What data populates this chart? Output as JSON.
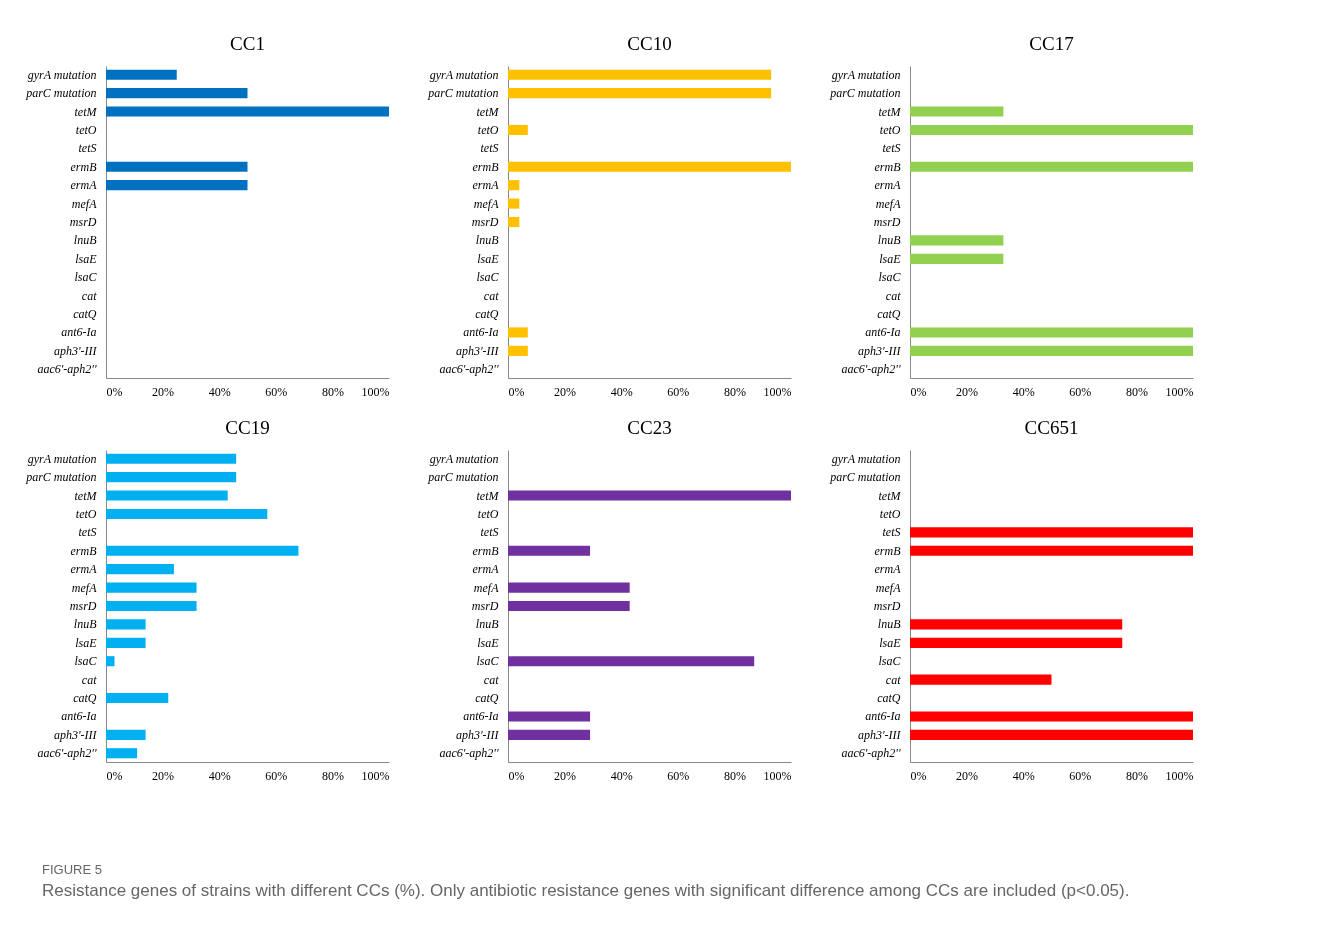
{
  "chart_data": [
    {
      "type": "bar",
      "orientation": "horizontal",
      "title": "CC1",
      "categories": [
        "gyrA mutation",
        "parC mutation",
        "tetM",
        "tetO",
        "tetS",
        "ermB",
        "ermA",
        "mefA",
        "msrD",
        "lnuB",
        "lsaE",
        "lsaC",
        "cat",
        "catQ",
        "ant6-Ia",
        "aph3'-III",
        "aac6'-aph2''"
      ],
      "values": [
        25,
        50,
        100,
        0,
        0,
        50,
        50,
        0,
        0,
        0,
        0,
        0,
        0,
        0,
        0,
        0,
        0
      ],
      "color": "#0070c0",
      "xlim": [
        0,
        100
      ],
      "xticks": [
        {
          "value": 0,
          "label": "0%"
        },
        {
          "value": 20,
          "label": "20%"
        },
        {
          "value": 40,
          "label": "40%"
        },
        {
          "value": 60,
          "label": "60%"
        },
        {
          "value": 80,
          "label": "80%"
        },
        {
          "value": 100,
          "label": "100%"
        }
      ]
    },
    {
      "type": "bar",
      "orientation": "horizontal",
      "title": "CC10",
      "categories": [
        "gyrA mutation",
        "parC mutation",
        "tetM",
        "tetO",
        "tetS",
        "ermB",
        "ermA",
        "mefA",
        "msrD",
        "lnuB",
        "lsaE",
        "lsaC",
        "cat",
        "catQ",
        "ant6-Ia",
        "aph3'-III",
        "aac6'-aph2''"
      ],
      "values": [
        93,
        93,
        0,
        7,
        0,
        100,
        4,
        4,
        4,
        0,
        0,
        0,
        0,
        0,
        7,
        7,
        0
      ],
      "color": "#ffc000",
      "xlim": [
        0,
        100
      ],
      "xticks": [
        {
          "value": 0,
          "label": "0%"
        },
        {
          "value": 20,
          "label": "20%"
        },
        {
          "value": 40,
          "label": "40%"
        },
        {
          "value": 60,
          "label": "60%"
        },
        {
          "value": 80,
          "label": "80%"
        },
        {
          "value": 100,
          "label": "100%"
        }
      ]
    },
    {
      "type": "bar",
      "orientation": "horizontal",
      "title": "CC17",
      "categories": [
        "gyrA mutation",
        "parC mutation",
        "tetM",
        "tetO",
        "tetS",
        "ermB",
        "ermA",
        "mefA",
        "msrD",
        "lnuB",
        "lsaE",
        "lsaC",
        "cat",
        "catQ",
        "ant6-Ia",
        "aph3'-III",
        "aac6'-aph2''"
      ],
      "values": [
        0,
        0,
        33,
        100,
        0,
        100,
        0,
        0,
        0,
        33,
        33,
        0,
        0,
        0,
        100,
        100,
        0
      ],
      "color": "#92d050",
      "xlim": [
        0,
        100
      ],
      "xticks": [
        {
          "value": 0,
          "label": "0%"
        },
        {
          "value": 20,
          "label": "20%"
        },
        {
          "value": 40,
          "label": "40%"
        },
        {
          "value": 60,
          "label": "60%"
        },
        {
          "value": 80,
          "label": "80%"
        },
        {
          "value": 100,
          "label": "100%"
        }
      ]
    },
    {
      "type": "bar",
      "orientation": "horizontal",
      "title": "CC19",
      "categories": [
        "gyrA mutation",
        "parC mutation",
        "tetM",
        "tetO",
        "tetS",
        "ermB",
        "ermA",
        "mefA",
        "msrD",
        "lnuB",
        "lsaE",
        "lsaC",
        "cat",
        "catQ",
        "ant6-Ia",
        "aph3'-III",
        "aac6'-aph2''"
      ],
      "values": [
        46,
        46,
        43,
        57,
        0,
        68,
        24,
        32,
        32,
        14,
        14,
        3,
        0,
        22,
        0,
        14,
        11
      ],
      "color": "#00b0f0",
      "xlim": [
        0,
        100
      ],
      "xticks": [
        {
          "value": 0,
          "label": "0%"
        },
        {
          "value": 20,
          "label": "20%"
        },
        {
          "value": 40,
          "label": "40%"
        },
        {
          "value": 60,
          "label": "60%"
        },
        {
          "value": 80,
          "label": "80%"
        },
        {
          "value": 100,
          "label": "100%"
        }
      ]
    },
    {
      "type": "bar",
      "orientation": "horizontal",
      "title": "CC23",
      "categories": [
        "gyrA mutation",
        "parC mutation",
        "tetM",
        "tetO",
        "tetS",
        "ermB",
        "ermA",
        "mefA",
        "msrD",
        "lnuB",
        "lsaE",
        "lsaC",
        "cat",
        "catQ",
        "ant6-Ia",
        "aph3'-III",
        "aac6'-aph2''"
      ],
      "values": [
        0,
        0,
        100,
        0,
        0,
        29,
        0,
        43,
        43,
        0,
        0,
        87,
        0,
        0,
        29,
        29,
        0
      ],
      "color": "#7030a0",
      "xlim": [
        0,
        100
      ],
      "xticks": [
        {
          "value": 0,
          "label": "0%"
        },
        {
          "value": 20,
          "label": "20%"
        },
        {
          "value": 40,
          "label": "40%"
        },
        {
          "value": 60,
          "label": "60%"
        },
        {
          "value": 80,
          "label": "80%"
        },
        {
          "value": 100,
          "label": "100%"
        }
      ]
    },
    {
      "type": "bar",
      "orientation": "horizontal",
      "title": "CC651",
      "categories": [
        "gyrA mutation",
        "parC mutation",
        "tetM",
        "tetO",
        "tetS",
        "ermB",
        "ermA",
        "mefA",
        "msrD",
        "lnuB",
        "lsaE",
        "lsaC",
        "cat",
        "catQ",
        "ant6-Ia",
        "aph3'-III",
        "aac6'-aph2''"
      ],
      "values": [
        0,
        0,
        0,
        0,
        100,
        100,
        0,
        0,
        0,
        75,
        75,
        0,
        50,
        0,
        100,
        100,
        0
      ],
      "color": "#ff0000",
      "xlim": [
        0,
        100
      ],
      "xticks": [
        {
          "value": 0,
          "label": "0%"
        },
        {
          "value": 20,
          "label": "20%"
        },
        {
          "value": 40,
          "label": "40%"
        },
        {
          "value": 60,
          "label": "60%"
        },
        {
          "value": 80,
          "label": "80%"
        },
        {
          "value": 100,
          "label": "100%"
        }
      ],
      "annotations": [
        "FIGURE 5",
        "Resistance genes of strains with different CCs (%). Only antibiotic resistance genes with significant difference among CCs are included (p<0.05)."
      ]
    }
  ]
}
